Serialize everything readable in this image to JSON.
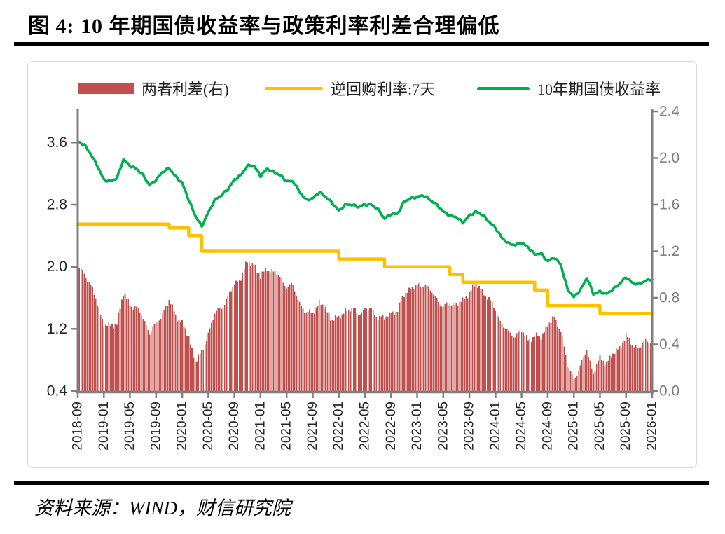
{
  "title": "图 4:  10 年期国债收益率与政策利率利差合理偏低",
  "source": "资料来源：WIND，财信研究院",
  "legend": [
    {
      "label": "两者利差(右)",
      "type": "bar",
      "color": "#C0504D"
    },
    {
      "label": "逆回购利率:7天",
      "type": "line",
      "color": "#FFC000"
    },
    {
      "label": "10年期国债收益率",
      "type": "line",
      "color": "#00B050"
    }
  ],
  "colors": {
    "bar": "#C0504D",
    "repo_line": "#FFC000",
    "yield_line": "#00B050",
    "axis": "#808080",
    "dark_text": "#262626",
    "right_axis_text": "#7f7f7f",
    "box_border": "#d9d9d9",
    "background": "#ffffff"
  },
  "chart_data": {
    "type": "mixed",
    "title": "10 年期国债收益率与政策利率利差合理偏低",
    "grid": false,
    "legend_position": "top",
    "left_axis": {
      "min": 0.4,
      "max": 4.0,
      "tick_labels": [
        "3.6",
        "2.8",
        "2.0",
        "1.2",
        "0.4"
      ]
    },
    "right_axis": {
      "min": 0.0,
      "max": 2.4,
      "tick_labels": [
        "2.4",
        "2.0",
        "1.6",
        "1.2",
        "0.8",
        "0.4",
        "0.0"
      ]
    },
    "x_tick_labels": [
      "2018-09",
      "2019-01",
      "2019-05",
      "2019-09",
      "2020-01",
      "2020-05",
      "2020-09",
      "2021-01",
      "2021-05",
      "2021-09",
      "2022-01",
      "2022-05",
      "2022-09",
      "2023-01",
      "2023-05",
      "2023-09",
      "2024-01",
      "2024-05",
      "2024-09",
      "2025-01",
      "2025-05",
      "2025-09",
      "2026-01"
    ],
    "x": [
      "2018-09",
      "2018-10",
      "2018-11",
      "2018-12",
      "2019-01",
      "2019-02",
      "2019-03",
      "2019-04",
      "2019-05",
      "2019-06",
      "2019-07",
      "2019-08",
      "2019-09",
      "2019-10",
      "2019-11",
      "2019-12",
      "2020-01",
      "2020-02",
      "2020-03",
      "2020-04",
      "2020-05",
      "2020-06",
      "2020-07",
      "2020-08",
      "2020-09",
      "2020-10",
      "2020-11",
      "2020-12",
      "2021-01",
      "2021-02",
      "2021-03",
      "2021-04",
      "2021-05",
      "2021-06",
      "2021-07",
      "2021-08",
      "2021-09",
      "2021-10",
      "2021-11",
      "2021-12",
      "2022-01",
      "2022-02",
      "2022-03",
      "2022-04",
      "2022-05",
      "2022-06",
      "2022-07",
      "2022-08",
      "2022-09",
      "2022-10",
      "2022-11",
      "2022-12",
      "2023-01",
      "2023-02",
      "2023-03",
      "2023-04",
      "2023-05",
      "2023-06",
      "2023-07",
      "2023-08",
      "2023-09",
      "2023-10",
      "2023-11",
      "2023-12",
      "2024-01",
      "2024-02",
      "2024-03",
      "2024-04",
      "2024-05",
      "2024-06",
      "2024-07",
      "2024-08",
      "2024-09",
      "2024-10",
      "2024-11",
      "2024-12",
      "2025-01",
      "2025-02",
      "2025-03",
      "2025-04",
      "2025-05",
      "2025-06",
      "2025-07",
      "2025-08",
      "2025-09",
      "2025-10",
      "2025-11",
      "2025-12",
      "2026-01"
    ],
    "series": [
      {
        "name": "两者利差(右)",
        "type": "bar",
        "axis": "right",
        "color": "#C0504D",
        "values": [
          1.06,
          1.02,
          0.9,
          0.75,
          0.57,
          0.55,
          0.59,
          0.83,
          0.75,
          0.71,
          0.63,
          0.5,
          0.57,
          0.67,
          0.77,
          0.66,
          0.58,
          0.46,
          0.26,
          0.32,
          0.5,
          0.66,
          0.72,
          0.8,
          0.92,
          0.98,
          1.1,
          1.1,
          0.97,
          1.06,
          1.02,
          0.98,
          0.9,
          0.9,
          0.76,
          0.66,
          0.68,
          0.76,
          0.7,
          0.62,
          0.62,
          0.7,
          0.7,
          0.67,
          0.7,
          0.7,
          0.64,
          0.62,
          0.68,
          0.68,
          0.84,
          0.88,
          0.9,
          0.92,
          0.86,
          0.8,
          0.71,
          0.76,
          0.74,
          0.77,
          0.86,
          0.91,
          0.87,
          0.78,
          0.7,
          0.57,
          0.5,
          0.48,
          0.51,
          0.45,
          0.46,
          0.47,
          0.57,
          0.62,
          0.53,
          0.22,
          0.11,
          0.2,
          0.36,
          0.15,
          0.28,
          0.25,
          0.31,
          0.38,
          0.47,
          0.39,
          0.38,
          0.42,
          0.44
        ]
      },
      {
        "name": "逆回购利率:7天",
        "type": "step-line",
        "axis": "left",
        "color": "#FFC000",
        "values": [
          2.55,
          2.55,
          2.55,
          2.55,
          2.55,
          2.55,
          2.55,
          2.55,
          2.55,
          2.55,
          2.55,
          2.55,
          2.55,
          2.55,
          2.5,
          2.5,
          2.5,
          2.4,
          2.4,
          2.2,
          2.2,
          2.2,
          2.2,
          2.2,
          2.2,
          2.2,
          2.2,
          2.2,
          2.2,
          2.2,
          2.2,
          2.2,
          2.2,
          2.2,
          2.2,
          2.2,
          2.2,
          2.2,
          2.2,
          2.2,
          2.1,
          2.1,
          2.1,
          2.1,
          2.1,
          2.1,
          2.1,
          2.0,
          2.0,
          2.0,
          2.0,
          2.0,
          2.0,
          2.0,
          2.0,
          2.0,
          2.0,
          1.9,
          1.9,
          1.8,
          1.8,
          1.8,
          1.8,
          1.8,
          1.8,
          1.8,
          1.8,
          1.8,
          1.8,
          1.8,
          1.7,
          1.7,
          1.5,
          1.5,
          1.5,
          1.5,
          1.5,
          1.5,
          1.5,
          1.5,
          1.4,
          1.4,
          1.4,
          1.4,
          1.4,
          1.4,
          1.4,
          1.4,
          1.4
        ]
      },
      {
        "name": "10年期国债收益率",
        "type": "line",
        "axis": "left",
        "color": "#00B050",
        "values": [
          3.61,
          3.57,
          3.45,
          3.3,
          3.12,
          3.1,
          3.14,
          3.38,
          3.3,
          3.26,
          3.18,
          3.05,
          3.12,
          3.22,
          3.27,
          3.16,
          3.08,
          2.86,
          2.66,
          2.52,
          2.7,
          2.86,
          2.92,
          3.0,
          3.12,
          3.18,
          3.3,
          3.3,
          3.17,
          3.26,
          3.22,
          3.18,
          3.1,
          3.1,
          2.96,
          2.86,
          2.88,
          2.96,
          2.9,
          2.82,
          2.72,
          2.8,
          2.8,
          2.77,
          2.8,
          2.8,
          2.74,
          2.62,
          2.68,
          2.68,
          2.84,
          2.88,
          2.9,
          2.92,
          2.86,
          2.8,
          2.71,
          2.66,
          2.64,
          2.57,
          2.66,
          2.71,
          2.67,
          2.58,
          2.5,
          2.37,
          2.3,
          2.28,
          2.31,
          2.25,
          2.16,
          2.17,
          2.07,
          2.12,
          2.03,
          1.72,
          1.61,
          1.7,
          1.86,
          1.65,
          1.68,
          1.65,
          1.71,
          1.78,
          1.87,
          1.79,
          1.78,
          1.82,
          1.84
        ]
      }
    ]
  }
}
